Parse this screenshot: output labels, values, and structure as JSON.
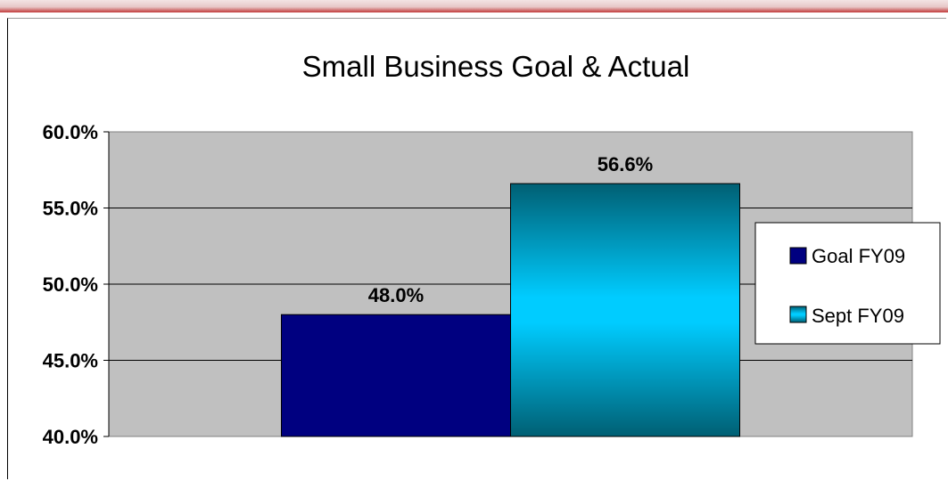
{
  "chart_data": {
    "type": "bar",
    "title": "Small Business Goal & Actual",
    "categories": [
      ""
    ],
    "series": [
      {
        "name": "Goal FY09",
        "values": [
          48.0
        ],
        "label": "48.0%",
        "color": "#000080"
      },
      {
        "name": "Sept FY09",
        "values": [
          56.6
        ],
        "label": "56.6%",
        "color": "#00ccff"
      }
    ],
    "ylim": [
      40,
      60
    ],
    "yticks": [
      {
        "value": 40,
        "label": "40.0%"
      },
      {
        "value": 45,
        "label": "45.0%"
      },
      {
        "value": 50,
        "label": "50.0%"
      },
      {
        "value": 55,
        "label": "55.0%"
      },
      {
        "value": 60,
        "label": "60.0%"
      }
    ],
    "grid": true,
    "legend_position": "right",
    "plot_background": "#c0c0c0"
  }
}
